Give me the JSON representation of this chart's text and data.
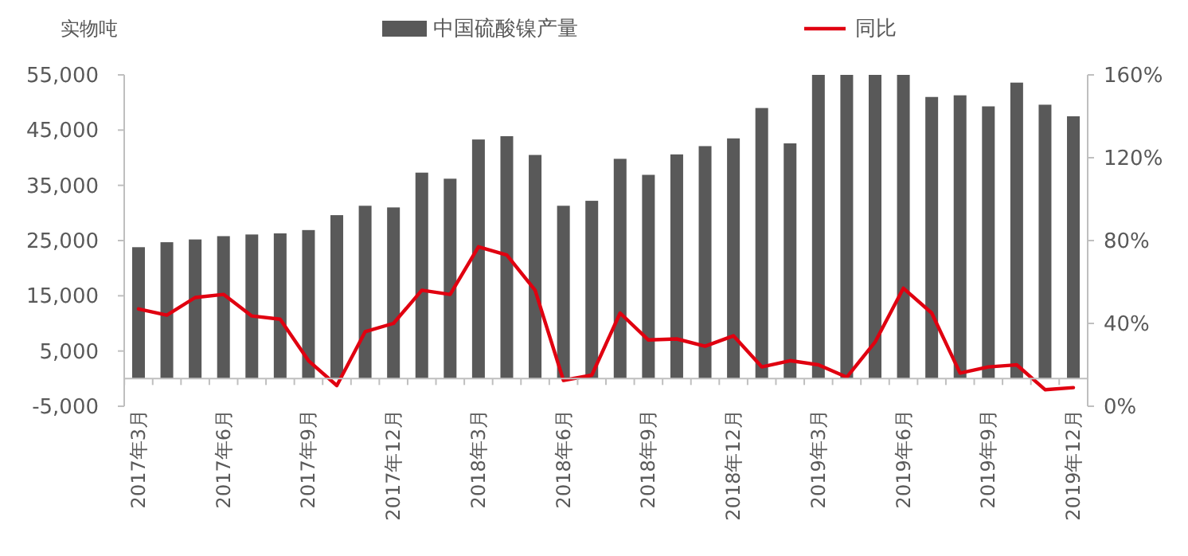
{
  "chart_data": {
    "type": "bar",
    "ylabel": "实物吨",
    "legend": "top",
    "categories": [
      "2017年3月",
      null,
      null,
      "2017年6月",
      null,
      null,
      "2017年9月",
      null,
      null,
      "2017年12月",
      null,
      null,
      "2018年3月",
      null,
      null,
      "2018年6月",
      null,
      null,
      "2018年9月",
      null,
      null,
      "2018年12月",
      null,
      null,
      "2019年3月",
      null,
      null,
      "2019年6月",
      null,
      null,
      "2019年9月",
      null,
      null,
      "2019年12月"
    ],
    "series": [
      {
        "name": "中国硫酸镍产量",
        "color": "#595959",
        "values": [
          23800,
          24700,
          25200,
          25800,
          26100,
          26300,
          26900,
          29600,
          31300,
          31000,
          37300,
          36200,
          43300,
          43900,
          40500,
          31300,
          32200,
          39800,
          36900,
          40600,
          42100,
          43500,
          49000,
          42600,
          55000,
          55000,
          55000,
          55000,
          51000,
          51300,
          49300,
          53600,
          49600,
          47500
        ]
      },
      {
        "name": "同比",
        "type": "line",
        "axis": "y2",
        "color": "#e00010",
        "values": [
          47,
          44,
          52.5,
          54,
          43.6,
          42,
          22,
          10,
          36,
          40,
          56,
          54,
          77,
          73,
          56,
          12.5,
          15,
          45,
          32,
          32.5,
          29,
          34,
          19,
          22,
          20,
          14,
          31,
          57,
          45,
          16,
          19,
          20,
          8,
          9
        ]
      }
    ],
    "ylim": [
      -5000,
      55000
    ],
    "yticks": [
      {
        "value": -5000,
        "label": "-5,000"
      },
      {
        "value": 5000,
        "label": "5,000"
      },
      {
        "value": 15000,
        "label": "15,000"
      },
      {
        "value": 25000,
        "label": "25,000"
      },
      {
        "value": 35000,
        "label": "35,000"
      },
      {
        "value": 45000,
        "label": "45,000"
      },
      {
        "value": 55000,
        "label": "55,000"
      }
    ],
    "y2lim": [
      0,
      160
    ],
    "y2ticks": [
      {
        "value": 0,
        "label": "0%"
      },
      {
        "value": 40,
        "label": "40%"
      },
      {
        "value": 80,
        "label": "80%"
      },
      {
        "value": 120,
        "label": "120%"
      },
      {
        "value": 160,
        "label": "160%"
      }
    ]
  }
}
